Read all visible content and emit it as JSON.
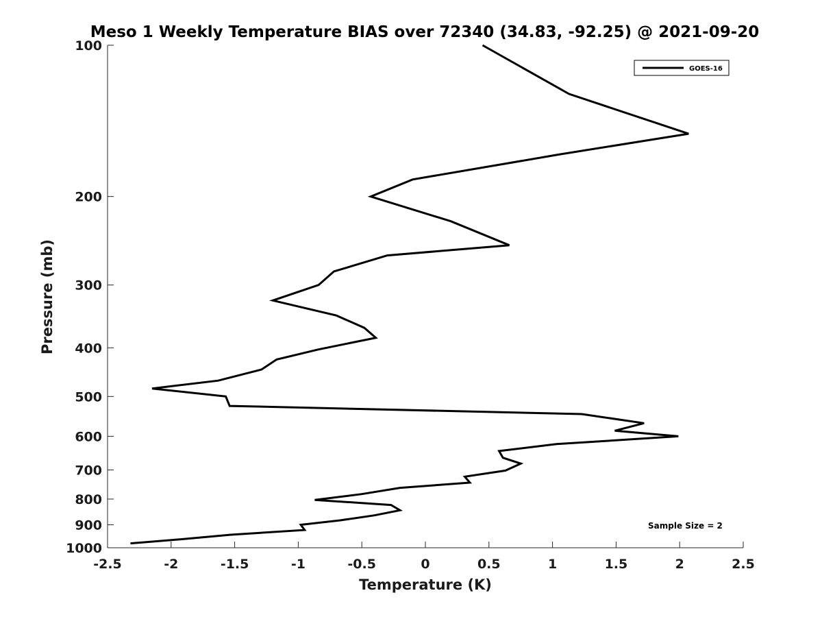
{
  "chart_data": {
    "type": "line",
    "title": "Meso 1 Weekly Temperature BIAS over 72340 (34.83, -92.25) @ 2021-09-20",
    "xlabel": "Temperature (K)",
    "ylabel": "Pressure (mb)",
    "xlim": [
      -2.5,
      2.5
    ],
    "ylim": [
      1000,
      100
    ],
    "y_scale": "log",
    "y_reversed": true,
    "grid": false,
    "legend_position": "top-right",
    "xticks": [
      -2.5,
      -2,
      -1.5,
      -1,
      -0.5,
      0,
      0.5,
      1,
      1.5,
      2,
      2.5
    ],
    "xtick_labels": [
      "-2.5",
      "-2",
      "-1.5",
      "-1",
      "-0.5",
      "0",
      "0.5",
      "1",
      "1.5",
      "2",
      "2.5"
    ],
    "yticks": [
      100,
      200,
      300,
      400,
      500,
      600,
      700,
      800,
      900,
      1000
    ],
    "ytick_labels": [
      "100",
      "200",
      "300",
      "400",
      "500",
      "600",
      "700",
      "800",
      "900",
      "1000"
    ],
    "series": [
      {
        "name": "GOES-16",
        "color": "#000000",
        "points": [
          [
            0.45,
            100
          ],
          [
            1.13,
            125
          ],
          [
            2.07,
            150
          ],
          [
            1.05,
            165
          ],
          [
            -0.1,
            185
          ],
          [
            -0.43,
            200
          ],
          [
            0.2,
            224
          ],
          [
            0.66,
            250
          ],
          [
            -0.3,
            262
          ],
          [
            -0.72,
            282
          ],
          [
            -0.84,
            300
          ],
          [
            -1.2,
            322
          ],
          [
            -0.7,
            345
          ],
          [
            -0.48,
            365
          ],
          [
            -0.39,
            382
          ],
          [
            -0.84,
            403
          ],
          [
            -1.17,
            422
          ],
          [
            -1.29,
            442
          ],
          [
            -1.63,
            465
          ],
          [
            -2.15,
            482
          ],
          [
            -1.57,
            500
          ],
          [
            -1.54,
            522
          ],
          [
            1.23,
            542
          ],
          [
            1.72,
            565
          ],
          [
            1.49,
            585
          ],
          [
            1.99,
            600
          ],
          [
            1.03,
            622
          ],
          [
            0.58,
            642
          ],
          [
            0.61,
            662
          ],
          [
            0.75,
            680
          ],
          [
            0.63,
            702
          ],
          [
            0.31,
            722
          ],
          [
            0.35,
            742
          ],
          [
            -0.2,
            760
          ],
          [
            -0.5,
            782
          ],
          [
            -0.87,
            803
          ],
          [
            -0.27,
            822
          ],
          [
            -0.2,
            842
          ],
          [
            -0.4,
            862
          ],
          [
            -0.67,
            882
          ],
          [
            -0.98,
            900
          ],
          [
            -0.95,
            922
          ],
          [
            -1.53,
            942
          ],
          [
            -1.93,
            962
          ],
          [
            -2.32,
            980
          ]
        ]
      }
    ],
    "annotation": "Sample Size = 2"
  }
}
